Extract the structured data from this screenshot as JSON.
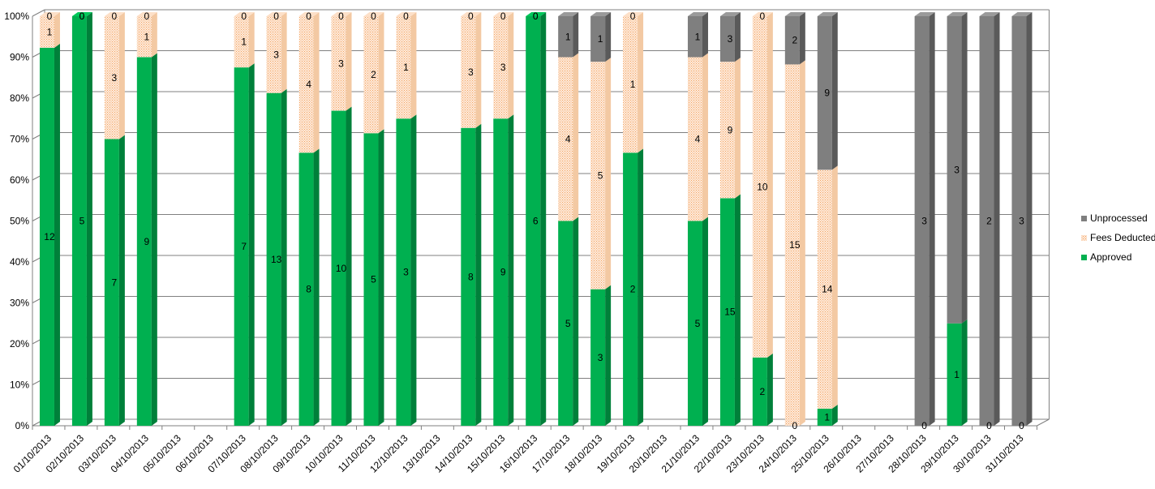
{
  "chart_data": {
    "type": "bar",
    "stacked": "percent",
    "title": "",
    "xlabel": "",
    "ylabel": "",
    "ylim": [
      0,
      100
    ],
    "y_ticks": [
      "0%",
      "10%",
      "20%",
      "30%",
      "40%",
      "50%",
      "60%",
      "70%",
      "80%",
      "90%",
      "100%"
    ],
    "grid": true,
    "legend_position": "right",
    "categories": [
      "01/10/2013",
      "02/10/2013",
      "03/10/2013",
      "04/10/2013",
      "05/10/2013",
      "06/10/2013",
      "07/10/2013",
      "08/10/2013",
      "09/10/2013",
      "10/10/2013",
      "11/10/2013",
      "12/10/2013",
      "13/10/2013",
      "14/10/2013",
      "15/10/2013",
      "16/10/2013",
      "17/10/2013",
      "18/10/2013",
      "19/10/2013",
      "20/10/2013",
      "21/10/2013",
      "22/10/2013",
      "23/10/2013",
      "24/10/2013",
      "25/10/2013",
      "26/10/2013",
      "27/10/2013",
      "28/10/2013",
      "29/10/2013",
      "30/10/2013",
      "31/10/2013"
    ],
    "series": [
      {
        "name": "Approved",
        "color": "#00b050",
        "values": [
          12,
          5,
          7,
          9,
          null,
          null,
          7,
          13,
          8,
          10,
          5,
          3,
          null,
          8,
          9,
          6,
          5,
          3,
          2,
          null,
          5,
          15,
          2,
          0,
          1,
          null,
          null,
          0,
          1,
          0,
          0
        ]
      },
      {
        "name": "Fees Deducted",
        "color": "#fbd5b5",
        "values": [
          1,
          0,
          3,
          1,
          null,
          null,
          1,
          3,
          4,
          3,
          2,
          1,
          null,
          3,
          3,
          0,
          4,
          5,
          1,
          null,
          4,
          9,
          10,
          15,
          14,
          null,
          null,
          null,
          null,
          null,
          null
        ]
      },
      {
        "name": "Unprocessed",
        "color": "#7f7f7f",
        "values": [
          0,
          0,
          0,
          0,
          null,
          null,
          0,
          0,
          0,
          0,
          0,
          0,
          null,
          0,
          0,
          0,
          1,
          1,
          0,
          null,
          1,
          3,
          0,
          2,
          9,
          null,
          null,
          3,
          3,
          2,
          3
        ]
      }
    ]
  }
}
